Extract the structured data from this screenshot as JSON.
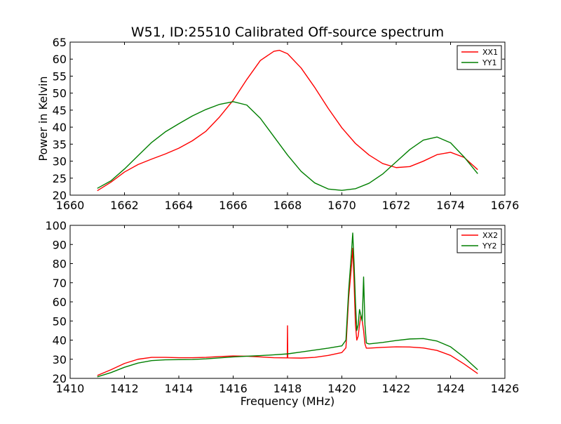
{
  "title": "W51, ID:25510 Calibrated Off-source spectrum",
  "chart_data": [
    {
      "type": "line",
      "title": "W51, ID:25510 Calibrated Off-source spectrum",
      "xlabel": "",
      "ylabel": "Power in Kelvin",
      "xlim": [
        1660,
        1676
      ],
      "ylim": [
        20,
        65
      ],
      "xticks": [
        1660,
        1662,
        1664,
        1666,
        1668,
        1670,
        1672,
        1674,
        1676
      ],
      "yticks": [
        20,
        25,
        30,
        35,
        40,
        45,
        50,
        55,
        60,
        65
      ],
      "legend_position": "top-right",
      "grid": false,
      "series": [
        {
          "name": "XX1",
          "color": "#ff0000",
          "x": [
            1661,
            1661.5,
            1662,
            1662.5,
            1663,
            1663.5,
            1664,
            1664.5,
            1665,
            1665.5,
            1666,
            1666.5,
            1667,
            1667.5,
            1667.7,
            1668,
            1668.5,
            1669,
            1669.5,
            1670,
            1670.5,
            1671,
            1671.5,
            1672,
            1672.5,
            1673,
            1673.5,
            1674,
            1674.5,
            1675
          ],
          "y": [
            21.3,
            23.8,
            26.8,
            29.0,
            30.6,
            32.1,
            33.8,
            36.0,
            38.8,
            43.0,
            47.9,
            54.0,
            59.6,
            62.3,
            62.6,
            61.6,
            57.4,
            51.7,
            45.5,
            39.8,
            35.2,
            31.8,
            29.3,
            28.1,
            28.4,
            30.0,
            31.9,
            32.6,
            31.1,
            27.5
          ]
        },
        {
          "name": "YY1",
          "color": "#007f00",
          "x": [
            1661,
            1661.5,
            1662,
            1662.5,
            1663,
            1663.5,
            1664,
            1664.5,
            1665,
            1665.5,
            1666,
            1666.5,
            1667,
            1667.5,
            1668,
            1668.5,
            1669,
            1669.5,
            1670,
            1670.5,
            1671,
            1671.5,
            1672,
            1672.5,
            1673,
            1673.5,
            1674,
            1674.5,
            1675
          ],
          "y": [
            22.0,
            24.2,
            27.7,
            31.6,
            35.5,
            38.6,
            41.0,
            43.3,
            45.2,
            46.7,
            47.5,
            46.5,
            42.6,
            37.2,
            31.8,
            27.0,
            23.6,
            21.8,
            21.4,
            21.9,
            23.5,
            26.2,
            29.8,
            33.4,
            36.2,
            37.1,
            35.4,
            31.2,
            26.3
          ]
        }
      ]
    },
    {
      "type": "line",
      "title": "",
      "xlabel": "Frequency (MHz)",
      "ylabel": "",
      "xlim": [
        1410,
        1426
      ],
      "ylim": [
        20,
        100
      ],
      "xticks": [
        1410,
        1412,
        1414,
        1416,
        1418,
        1420,
        1422,
        1424,
        1426
      ],
      "yticks": [
        20,
        30,
        40,
        50,
        60,
        70,
        80,
        90,
        100
      ],
      "legend_position": "top-right",
      "grid": false,
      "series": [
        {
          "name": "XX2",
          "color": "#ff0000",
          "x": [
            1411,
            1411.5,
            1412,
            1412.5,
            1413,
            1413.5,
            1414,
            1414.5,
            1415,
            1415.5,
            1416,
            1416.5,
            1417,
            1417.5,
            1417.99,
            1418.0,
            1418.01,
            1418.5,
            1419,
            1419.5,
            1420,
            1420.15,
            1420.25,
            1420.35,
            1420.4,
            1420.45,
            1420.5,
            1420.55,
            1420.6,
            1420.65,
            1420.7,
            1420.75,
            1420.8,
            1420.85,
            1420.9,
            1421,
            1421.5,
            1422,
            1422.5,
            1423,
            1423.5,
            1424,
            1424.5,
            1425
          ],
          "y": [
            21.5,
            24.5,
            27.8,
            30.0,
            31.0,
            31.0,
            30.8,
            30.8,
            31.0,
            31.4,
            31.7,
            31.6,
            31.2,
            30.8,
            30.7,
            47.5,
            30.7,
            30.6,
            31.0,
            32.0,
            33.5,
            36.0,
            62.0,
            78.0,
            88.0,
            70.0,
            48.0,
            40.0,
            42.0,
            48.0,
            53.0,
            50.0,
            45.0,
            38.0,
            35.8,
            35.8,
            36.2,
            36.5,
            36.4,
            35.9,
            34.6,
            32.0,
            27.5,
            22.5
          ]
        },
        {
          "name": "YY2",
          "color": "#007f00",
          "x": [
            1411,
            1411.5,
            1412,
            1412.5,
            1413,
            1413.5,
            1414,
            1414.5,
            1415,
            1415.5,
            1416,
            1416.5,
            1417,
            1417.5,
            1418,
            1418.5,
            1419,
            1419.5,
            1420,
            1420.15,
            1420.25,
            1420.35,
            1420.4,
            1420.45,
            1420.5,
            1420.55,
            1420.6,
            1420.65,
            1420.7,
            1420.75,
            1420.8,
            1420.85,
            1420.9,
            1421,
            1421.5,
            1422,
            1422.5,
            1423,
            1423.5,
            1424,
            1424.5,
            1425
          ],
          "y": [
            20.8,
            23.0,
            25.8,
            28.0,
            29.3,
            29.7,
            29.8,
            29.9,
            30.2,
            30.7,
            31.2,
            31.6,
            31.9,
            32.3,
            32.8,
            33.8,
            34.8,
            35.8,
            37.0,
            40.0,
            66.0,
            85.0,
            96.0,
            80.0,
            60.0,
            45.0,
            48.0,
            56.0,
            53.0,
            50.0,
            73.0,
            48.0,
            38.5,
            38.0,
            38.8,
            39.8,
            40.6,
            40.8,
            39.5,
            36.5,
            31.0,
            24.5
          ]
        }
      ]
    }
  ]
}
